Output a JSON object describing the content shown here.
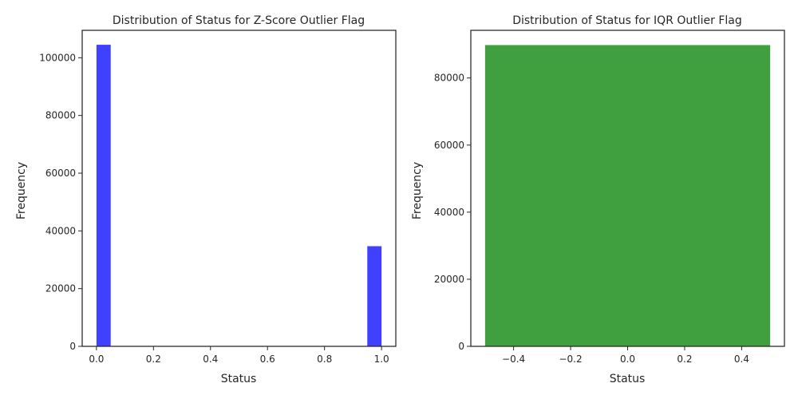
{
  "chart_data": [
    {
      "type": "bar",
      "title": "Distribution of Status for Z-Score Outlier Flag",
      "xlabel": "Status",
      "ylabel": "Frequency",
      "xlim": [
        -0.05,
        1.05
      ],
      "ylim": [
        0,
        109500
      ],
      "xticks": [
        0.0,
        0.2,
        0.4,
        0.6,
        0.8,
        1.0
      ],
      "xtick_labels": [
        "0.0",
        "0.2",
        "0.4",
        "0.6",
        "0.8",
        "1.0"
      ],
      "yticks": [
        0,
        20000,
        40000,
        60000,
        80000,
        100000
      ],
      "ytick_labels": [
        "0",
        "20000",
        "40000",
        "60000",
        "80000",
        "100000"
      ],
      "bins": [
        {
          "x_start": 0.0,
          "x_end": 0.05,
          "value": 104500
        },
        {
          "x_start": 0.95,
          "x_end": 1.0,
          "value": 34700
        }
      ],
      "color": "#0000ff",
      "opacity": 0.75,
      "grid": false,
      "legend": "none"
    },
    {
      "type": "bar",
      "title": "Distribution of Status for IQR Outlier Flag",
      "xlabel": "Status",
      "ylabel": "Frequency",
      "xlim": [
        -0.55,
        0.55
      ],
      "ylim": [
        0,
        94200
      ],
      "xticks": [
        -0.4,
        -0.2,
        0.0,
        0.2,
        0.4
      ],
      "xtick_labels": [
        "−0.4",
        "−0.2",
        "0.0",
        "0.2",
        "0.4"
      ],
      "yticks": [
        0,
        20000,
        40000,
        60000,
        80000
      ],
      "ytick_labels": [
        "0",
        "20000",
        "40000",
        "60000",
        "80000"
      ],
      "bins": [
        {
          "x_start": -0.5,
          "x_end": 0.5,
          "value": 89800
        }
      ],
      "color": "#008000",
      "opacity": 0.75,
      "grid": false,
      "legend": "none"
    }
  ]
}
